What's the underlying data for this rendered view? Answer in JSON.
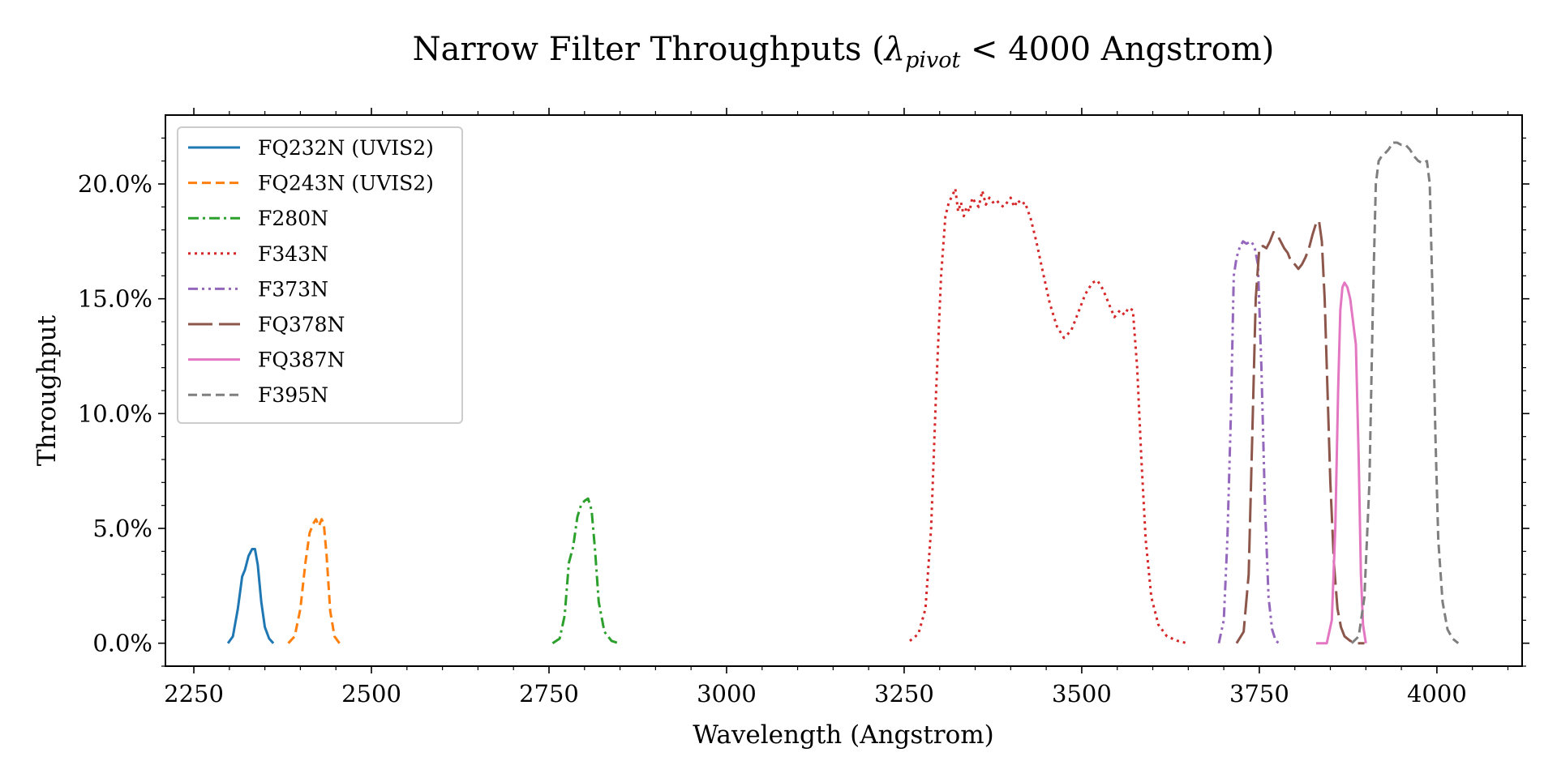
{
  "chart_data": {
    "type": "line",
    "title": "Narrow Filter Throughputs (λpivot < 4000 Angstrom)",
    "title_parts": {
      "prefix": "Narrow Filter Throughputs (",
      "lambda": "λ",
      "subscript": "pivot",
      "suffix": " < 4000 Angstrom)"
    },
    "xlabel": "Wavelength (Angstrom)",
    "ylabel": "Throughput",
    "xlim": [
      2210,
      4120
    ],
    "ylim": [
      -0.01,
      0.23
    ],
    "x_ticks": [
      2250,
      2500,
      2750,
      3000,
      3250,
      3500,
      3750,
      4000
    ],
    "x_tick_labels": [
      "2250",
      "2500",
      "2750",
      "3000",
      "3250",
      "3500",
      "3750",
      "4000"
    ],
    "y_ticks": [
      0.0,
      0.05,
      0.1,
      0.15,
      0.2
    ],
    "y_tick_labels": [
      "0.0%",
      "5.0%",
      "10.0%",
      "15.0%",
      "20.0%"
    ],
    "grid": false,
    "legend_position": "upper-left",
    "series": [
      {
        "name": "FQ232N (UVIS2)",
        "color": "#1f77b4",
        "dash": "solid",
        "x": [
          2298,
          2305,
          2312,
          2318,
          2322,
          2327,
          2332,
          2336,
          2340,
          2345,
          2350,
          2356,
          2362
        ],
        "y": [
          0.0,
          0.003,
          0.015,
          0.029,
          0.032,
          0.038,
          0.041,
          0.041,
          0.034,
          0.018,
          0.007,
          0.002,
          0.0
        ]
      },
      {
        "name": "FQ243N (UVIS2)",
        "color": "#ff7f0e",
        "dash": "dashed",
        "x": [
          2383,
          2392,
          2400,
          2407,
          2413,
          2418,
          2422,
          2426,
          2430,
          2433,
          2437,
          2442,
          2448,
          2455
        ],
        "y": [
          0.0,
          0.003,
          0.015,
          0.035,
          0.048,
          0.052,
          0.054,
          0.051,
          0.054,
          0.052,
          0.038,
          0.014,
          0.003,
          0.0
        ]
      },
      {
        "name": "F280N",
        "color": "#2ca02c",
        "dash": "dashdot",
        "x": [
          2755,
          2765,
          2772,
          2778,
          2784,
          2790,
          2795,
          2800,
          2805,
          2810,
          2815,
          2820,
          2828,
          2838,
          2848
        ],
        "y": [
          0.0,
          0.002,
          0.012,
          0.035,
          0.042,
          0.055,
          0.06,
          0.062,
          0.063,
          0.058,
          0.04,
          0.018,
          0.005,
          0.001,
          0.0
        ]
      },
      {
        "name": "F343N",
        "color": "#d62728",
        "dash": "dotted",
        "x": [
          3258,
          3270,
          3280,
          3288,
          3295,
          3302,
          3308,
          3313,
          3318,
          3322,
          3326,
          3330,
          3334,
          3338,
          3342,
          3346,
          3350,
          3355,
          3360,
          3365,
          3370,
          3375,
          3380,
          3385,
          3390,
          3395,
          3400,
          3405,
          3410,
          3415,
          3420,
          3428,
          3436,
          3445,
          3455,
          3465,
          3475,
          3485,
          3495,
          3505,
          3515,
          3522,
          3530,
          3538,
          3546,
          3554,
          3560,
          3566,
          3572,
          3578,
          3584,
          3590,
          3598,
          3608,
          3620,
          3635,
          3648
        ],
        "y": [
          0.001,
          0.004,
          0.015,
          0.05,
          0.11,
          0.16,
          0.186,
          0.192,
          0.195,
          0.198,
          0.188,
          0.192,
          0.186,
          0.19,
          0.188,
          0.194,
          0.192,
          0.19,
          0.197,
          0.191,
          0.194,
          0.192,
          0.193,
          0.191,
          0.19,
          0.192,
          0.194,
          0.19,
          0.193,
          0.191,
          0.192,
          0.185,
          0.175,
          0.162,
          0.148,
          0.138,
          0.133,
          0.136,
          0.144,
          0.152,
          0.157,
          0.158,
          0.154,
          0.148,
          0.142,
          0.145,
          0.143,
          0.146,
          0.145,
          0.12,
          0.08,
          0.045,
          0.02,
          0.008,
          0.003,
          0.001,
          0.0
        ]
      },
      {
        "name": "F373N",
        "color": "#9467bd",
        "dash": "dashdotdot",
        "x": [
          3693,
          3700,
          3705,
          3710,
          3714,
          3718,
          3722,
          3727,
          3732,
          3738,
          3743,
          3748,
          3753,
          3758,
          3763,
          3768,
          3773,
          3778
        ],
        "y": [
          0.0,
          0.01,
          0.045,
          0.1,
          0.16,
          0.168,
          0.172,
          0.175,
          0.174,
          0.175,
          0.173,
          0.165,
          0.12,
          0.06,
          0.02,
          0.006,
          0.001,
          0.0
        ]
      },
      {
        "name": "FQ378N",
        "color": "#8c564b",
        "dash": "longdash",
        "x": [
          3718,
          3728,
          3735,
          3740,
          3745,
          3750,
          3755,
          3760,
          3765,
          3770,
          3775,
          3780,
          3785,
          3790,
          3795,
          3800,
          3805,
          3810,
          3815,
          3820,
          3825,
          3830,
          3834,
          3838,
          3842,
          3846,
          3850,
          3855,
          3860,
          3865,
          3870,
          3878,
          3888,
          3898
        ],
        "y": [
          0.0,
          0.005,
          0.03,
          0.09,
          0.15,
          0.172,
          0.173,
          0.172,
          0.175,
          0.179,
          0.178,
          0.175,
          0.172,
          0.17,
          0.166,
          0.165,
          0.163,
          0.165,
          0.168,
          0.172,
          0.178,
          0.183,
          0.184,
          0.175,
          0.15,
          0.11,
          0.07,
          0.035,
          0.015,
          0.007,
          0.003,
          0.001,
          0.0,
          0.0
        ]
      },
      {
        "name": "FQ387N",
        "color": "#e377c2",
        "dash": "solid",
        "x": [
          3830,
          3845,
          3852,
          3857,
          3861,
          3864,
          3867,
          3870,
          3874,
          3878,
          3882,
          3886,
          3890,
          3893,
          3896,
          3900
        ],
        "y": [
          0.0,
          0.0,
          0.01,
          0.05,
          0.11,
          0.145,
          0.155,
          0.157,
          0.155,
          0.15,
          0.14,
          0.13,
          0.08,
          0.03,
          0.008,
          0.0
        ]
      },
      {
        "name": "F395N",
        "color": "#7f7f7f",
        "dash": "dashed",
        "x": [
          3880,
          3890,
          3898,
          3905,
          3910,
          3914,
          3918,
          3922,
          3926,
          3932,
          3938,
          3944,
          3950,
          3956,
          3962,
          3968,
          3974,
          3980,
          3986,
          3990,
          3994,
          3998,
          4002,
          4008,
          4015,
          4022,
          4030
        ],
        "y": [
          0.0,
          0.003,
          0.02,
          0.07,
          0.15,
          0.2,
          0.21,
          0.212,
          0.213,
          0.215,
          0.218,
          0.218,
          0.217,
          0.217,
          0.215,
          0.212,
          0.21,
          0.209,
          0.21,
          0.2,
          0.15,
          0.09,
          0.045,
          0.018,
          0.006,
          0.002,
          0.0
        ]
      }
    ]
  }
}
